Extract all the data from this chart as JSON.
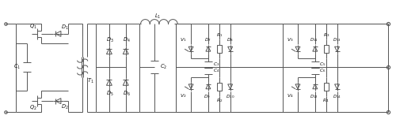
{
  "line_color": "#555555",
  "line_width": 0.7,
  "font_size": 4.8,
  "text_color": "#111111"
}
